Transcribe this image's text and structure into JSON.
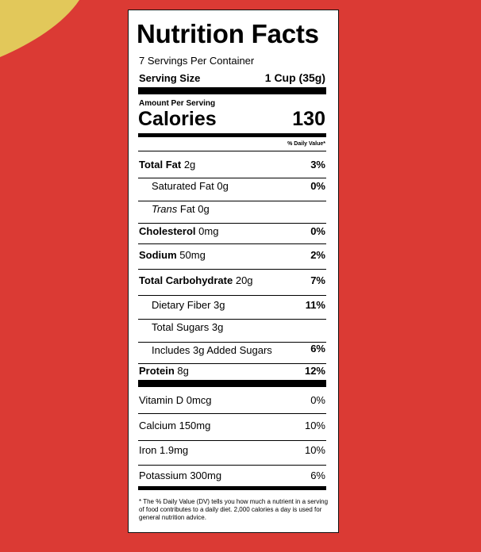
{
  "colors": {
    "background": "#db3a34",
    "accent": "#e2c85a",
    "label": "#ffffff",
    "ink": "#000000"
  },
  "title": "Nutrition Facts",
  "servings": "7 Servings Per Container",
  "serving_size": {
    "label": "Serving Size",
    "value": "1 Cup (35g)"
  },
  "amount_per_serving": "Amount Per Serving",
  "calories": {
    "label": "Calories",
    "value": "130"
  },
  "daily_value_header": "% Daily Value*",
  "nutrients": [
    {
      "name": "Total Fat",
      "amount": "2g",
      "dv": "3%"
    },
    {
      "name": "Saturated Fat",
      "amount": "0g",
      "dv": "0%"
    },
    {
      "name": "Trans",
      "amount": "Fat 0g",
      "dv": ""
    },
    {
      "name": "Cholesterol",
      "amount": "0mg",
      "dv": "0%"
    },
    {
      "name": "Sodium",
      "amount": "50mg",
      "dv": "2%"
    },
    {
      "name": "Total Carbohydrate",
      "amount": "20g",
      "dv": "7%"
    },
    {
      "name": "Dietary Fiber",
      "amount": "3g",
      "dv": "11%"
    },
    {
      "name": "Total Sugars",
      "amount": "3g",
      "dv": ""
    },
    {
      "name": "Includes 3g Added Sugars",
      "amount": "",
      "dv": "6%"
    },
    {
      "name": "Protein",
      "amount": "8g",
      "dv": "12%"
    }
  ],
  "vitamins": [
    {
      "name": "Vitamin D",
      "amount": "0mcg",
      "dv": "0%"
    },
    {
      "name": "Calcium",
      "amount": "150mg",
      "dv": "10%"
    },
    {
      "name": "Iron",
      "amount": "1.9mg",
      "dv": "10%"
    },
    {
      "name": "Potassium",
      "amount": "300mg",
      "dv": "6%"
    }
  ],
  "footnote": "* The % Daily Value (DV) tells you how much a nutrient in a serving of food contributes to a daily diet. 2,000 calories a day is used for general nutrition advice."
}
